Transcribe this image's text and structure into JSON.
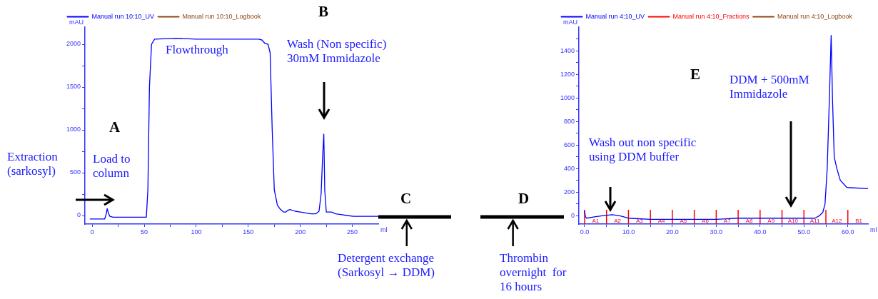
{
  "chart_data": [
    {
      "type": "line",
      "xlabel": "ml",
      "ylabel": "mAU",
      "xlim": [
        -7,
        275
      ],
      "ylim": [
        -100,
        2200
      ],
      "xticks": [
        0,
        {
          "value": 25,
          "label": null
        },
        50,
        {
          "value": 75,
          "label": null
        },
        100,
        {
          "value": 125,
          "label": null
        },
        150,
        {
          "value": 175,
          "label": null
        },
        200,
        {
          "value": 225,
          "label": null
        },
        250
      ],
      "yticks": [
        0,
        {
          "value": 250,
          "label": null
        },
        500,
        {
          "value": 750,
          "label": null
        },
        1000,
        {
          "value": 1250,
          "label": null
        },
        1500,
        {
          "value": 1750,
          "label": null
        },
        2000
      ],
      "grid": false,
      "legend": "top left",
      "marker": "none",
      "line_style": "solid",
      "series": [
        {
          "name": "Manual run 10:10_UV",
          "color": "#0000ff",
          "x": [
            -2,
            12,
            13.5,
            14.4,
            15.5,
            17,
            20,
            40,
            52,
            53.5,
            55,
            57,
            60,
            80,
            100,
            120,
            140,
            160,
            163,
            166,
            169,
            171,
            173,
            175,
            178,
            181,
            184,
            186,
            188,
            190,
            195,
            200,
            205,
            210,
            215,
            218,
            220,
            221.5,
            222.6,
            223.5,
            225,
            230,
            234,
            240,
            245,
            251,
            260,
            275
          ],
          "values": [
            -40,
            -40,
            20,
            80,
            30,
            -10,
            -20,
            -20,
            -20,
            300,
            1500,
            2000,
            2060,
            2070,
            2060,
            2060,
            2060,
            2060,
            2050,
            2010,
            2000,
            1900,
            1000,
            300,
            120,
            70,
            40,
            40,
            60,
            70,
            50,
            40,
            30,
            20,
            20,
            50,
            250,
            700,
            950,
            300,
            40,
            40,
            20,
            10,
            0,
            -10,
            -10,
            -10
          ]
        },
        {
          "name": "Manual run 10:10_Logbook",
          "color": "#8b4513"
        }
      ],
      "annotations": [
        "Extraction\n(sarkosyl)",
        "Load to\ncolumn",
        "A",
        "Flowthrough",
        "B",
        "Wash (Non specific)\n30mM Immidazole",
        "C",
        "Detergent exchange\n(Sarkosyl → DDM)"
      ]
    },
    {
      "type": "line",
      "xlabel": "ml",
      "ylabel": "mAU",
      "xlim": [
        -1.3,
        64.6
      ],
      "ylim": [
        -70,
        1600
      ],
      "xticks": [
        {
          "value": 0,
          "label": "0.0"
        },
        {
          "value": 5,
          "label": null
        },
        {
          "value": 10,
          "label": "10.0"
        },
        {
          "value": 15,
          "label": null
        },
        {
          "value": 20,
          "label": "20.0"
        },
        {
          "value": 25,
          "label": null
        },
        {
          "value": 30,
          "label": "30.0"
        },
        {
          "value": 35,
          "label": null
        },
        {
          "value": 40,
          "label": "40.0"
        },
        {
          "value": 45,
          "label": null
        },
        {
          "value": 50,
          "label": "50.0"
        },
        {
          "value": 55,
          "label": null
        },
        {
          "value": 60,
          "label": "60.0"
        }
      ],
      "yticks": [
        0,
        {
          "value": 100,
          "label": null
        },
        200,
        {
          "value": 300,
          "label": null
        },
        400,
        {
          "value": 500,
          "label": null
        },
        600,
        {
          "value": 700,
          "label": null
        },
        800,
        {
          "value": 900,
          "label": null
        },
        1000,
        {
          "value": 1100,
          "label": null
        },
        1200,
        {
          "value": 1300,
          "label": null
        },
        1400,
        {
          "value": 1500,
          "label": null
        }
      ],
      "grid": false,
      "legend": "top left",
      "marker": "none",
      "line_style": "solid",
      "series": [
        {
          "name": "Manual run 4:10_UV",
          "color": "#0000ff",
          "x": [
            0,
            0.2,
            0.5,
            2,
            4,
            6.3,
            8,
            10,
            15,
            20,
            30,
            35,
            40,
            45,
            50,
            52.5,
            53.5,
            54.3,
            54.8,
            55.3,
            55.8,
            56.2,
            56.5,
            56.9,
            57.5,
            58.3,
            59.8,
            64.6
          ],
          "values": [
            40,
            -10,
            -20,
            -10,
            0,
            10,
            0,
            -20,
            -30,
            -30,
            -30,
            -20,
            -20,
            -20,
            -20,
            -20,
            0,
            30,
            100,
            400,
            1000,
            1530,
            1000,
            500,
            400,
            300,
            240,
            230
          ]
        },
        {
          "name": "Manual run 4:10_Fractions",
          "color": "#ff0000"
        },
        {
          "name": "Manual run 4:10_Logbook",
          "color": "#8b4513"
        }
      ],
      "ref_lines": [
        {
          "axis": "x",
          "value": 0,
          "label": "A1",
          "color": "#ff0000"
        },
        {
          "axis": "x",
          "value": 5,
          "label": "A2",
          "color": "#ff0000"
        },
        {
          "axis": "x",
          "value": 10,
          "label": "A3",
          "color": "#ff0000"
        },
        {
          "axis": "x",
          "value": 15,
          "label": "A4",
          "color": "#ff0000"
        },
        {
          "axis": "x",
          "value": 20,
          "label": "A5",
          "color": "#ff0000"
        },
        {
          "axis": "x",
          "value": 25,
          "label": "A6",
          "color": "#ff0000"
        },
        {
          "axis": "x",
          "value": 30,
          "label": "A7",
          "color": "#ff0000"
        },
        {
          "axis": "x",
          "value": 35,
          "label": "A8",
          "color": "#ff0000"
        },
        {
          "axis": "x",
          "value": 40,
          "label": "A9",
          "color": "#ff0000"
        },
        {
          "axis": "x",
          "value": 45,
          "label": "A10",
          "color": "#ff0000"
        },
        {
          "axis": "x",
          "value": 50,
          "label": "A11",
          "color": "#ff0000"
        },
        {
          "axis": "x",
          "value": 55,
          "label": "A12",
          "color": "#ff0000"
        },
        {
          "axis": "x",
          "value": 60,
          "label": "B1",
          "color": "#ff0000"
        }
      ],
      "annotations": [
        "D",
        "Thrombin\novernight  for\n16 hours",
        "E",
        "Wash out non specific\nusing DDM buffer",
        "DDM + 500mM\nImmidazole"
      ]
    }
  ]
}
